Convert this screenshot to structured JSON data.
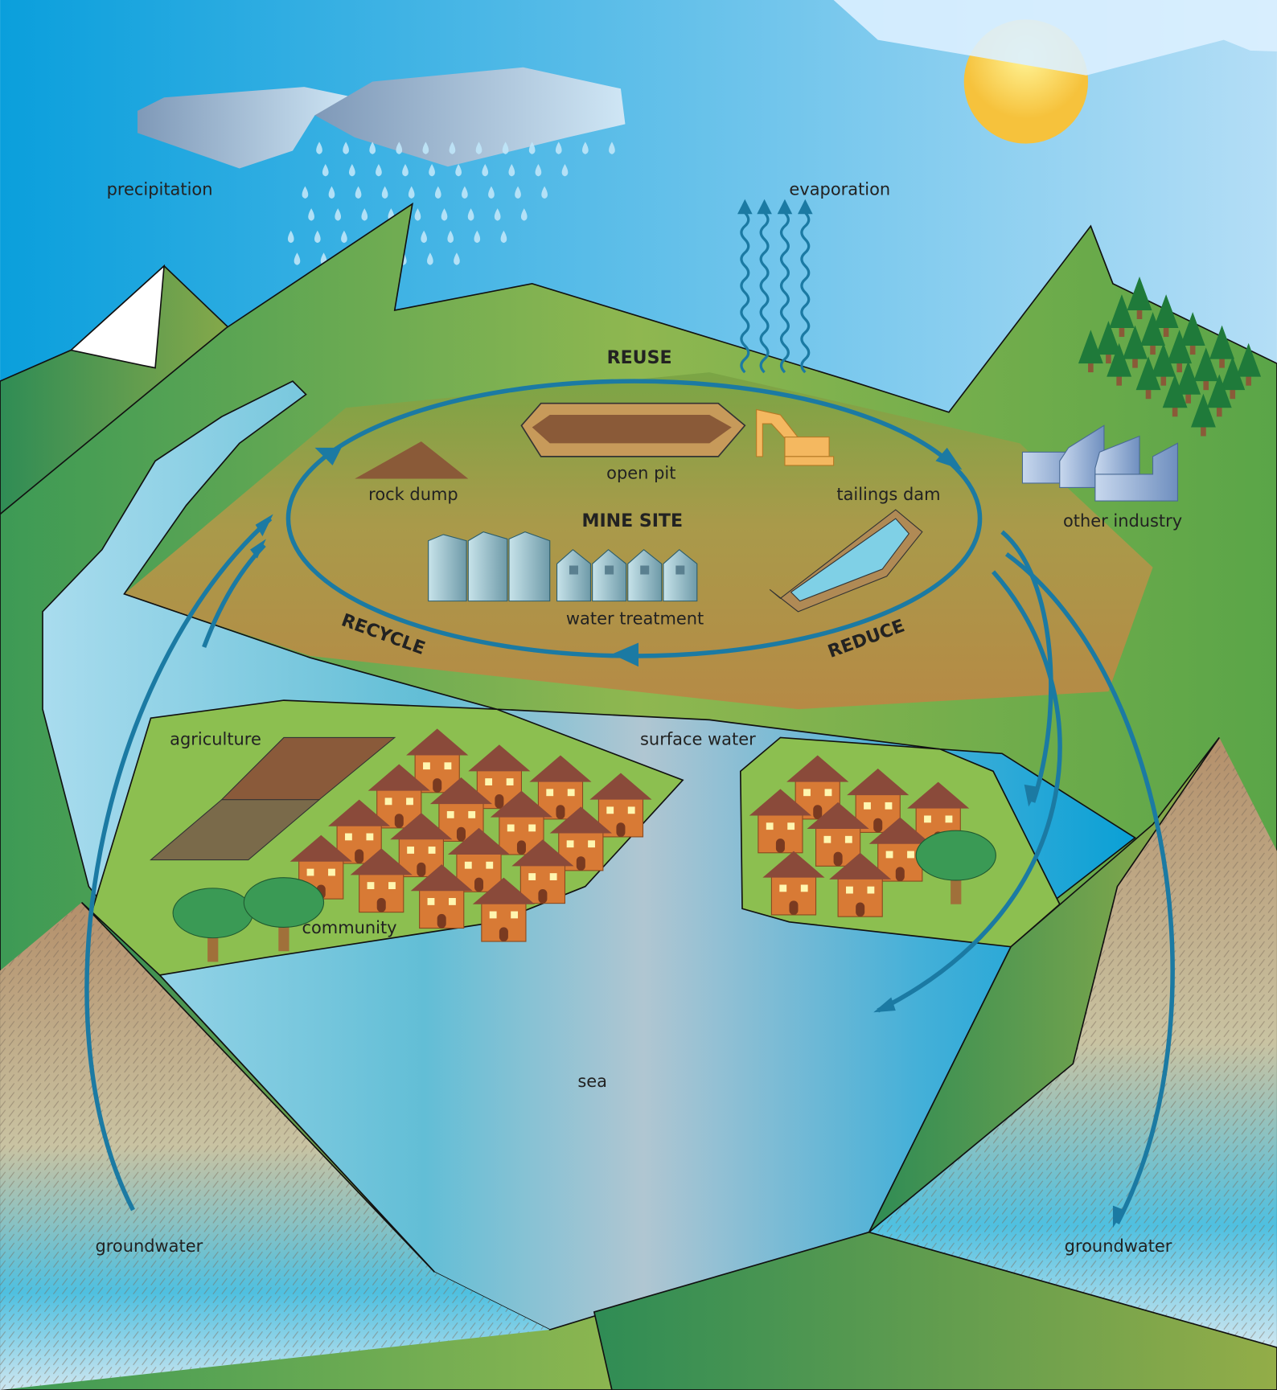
{
  "labels": {
    "precipitation": "precipitation",
    "evaporation": "evaporation",
    "reuse": "REUSE",
    "open_pit": "open pit",
    "rock_dump": "rock dump",
    "tailings_dam": "tailings dam",
    "mine_site": "MINE SITE",
    "other_industry": "other industry",
    "water_treatment": "water treatment",
    "recycle": "RECYCLE",
    "reduce": "REDUCE",
    "agriculture": "agriculture",
    "surface_water": "surface water",
    "community": "community",
    "sea": "sea",
    "groundwater_left": "groundwater",
    "groundwater_right": "groundwater"
  }
}
